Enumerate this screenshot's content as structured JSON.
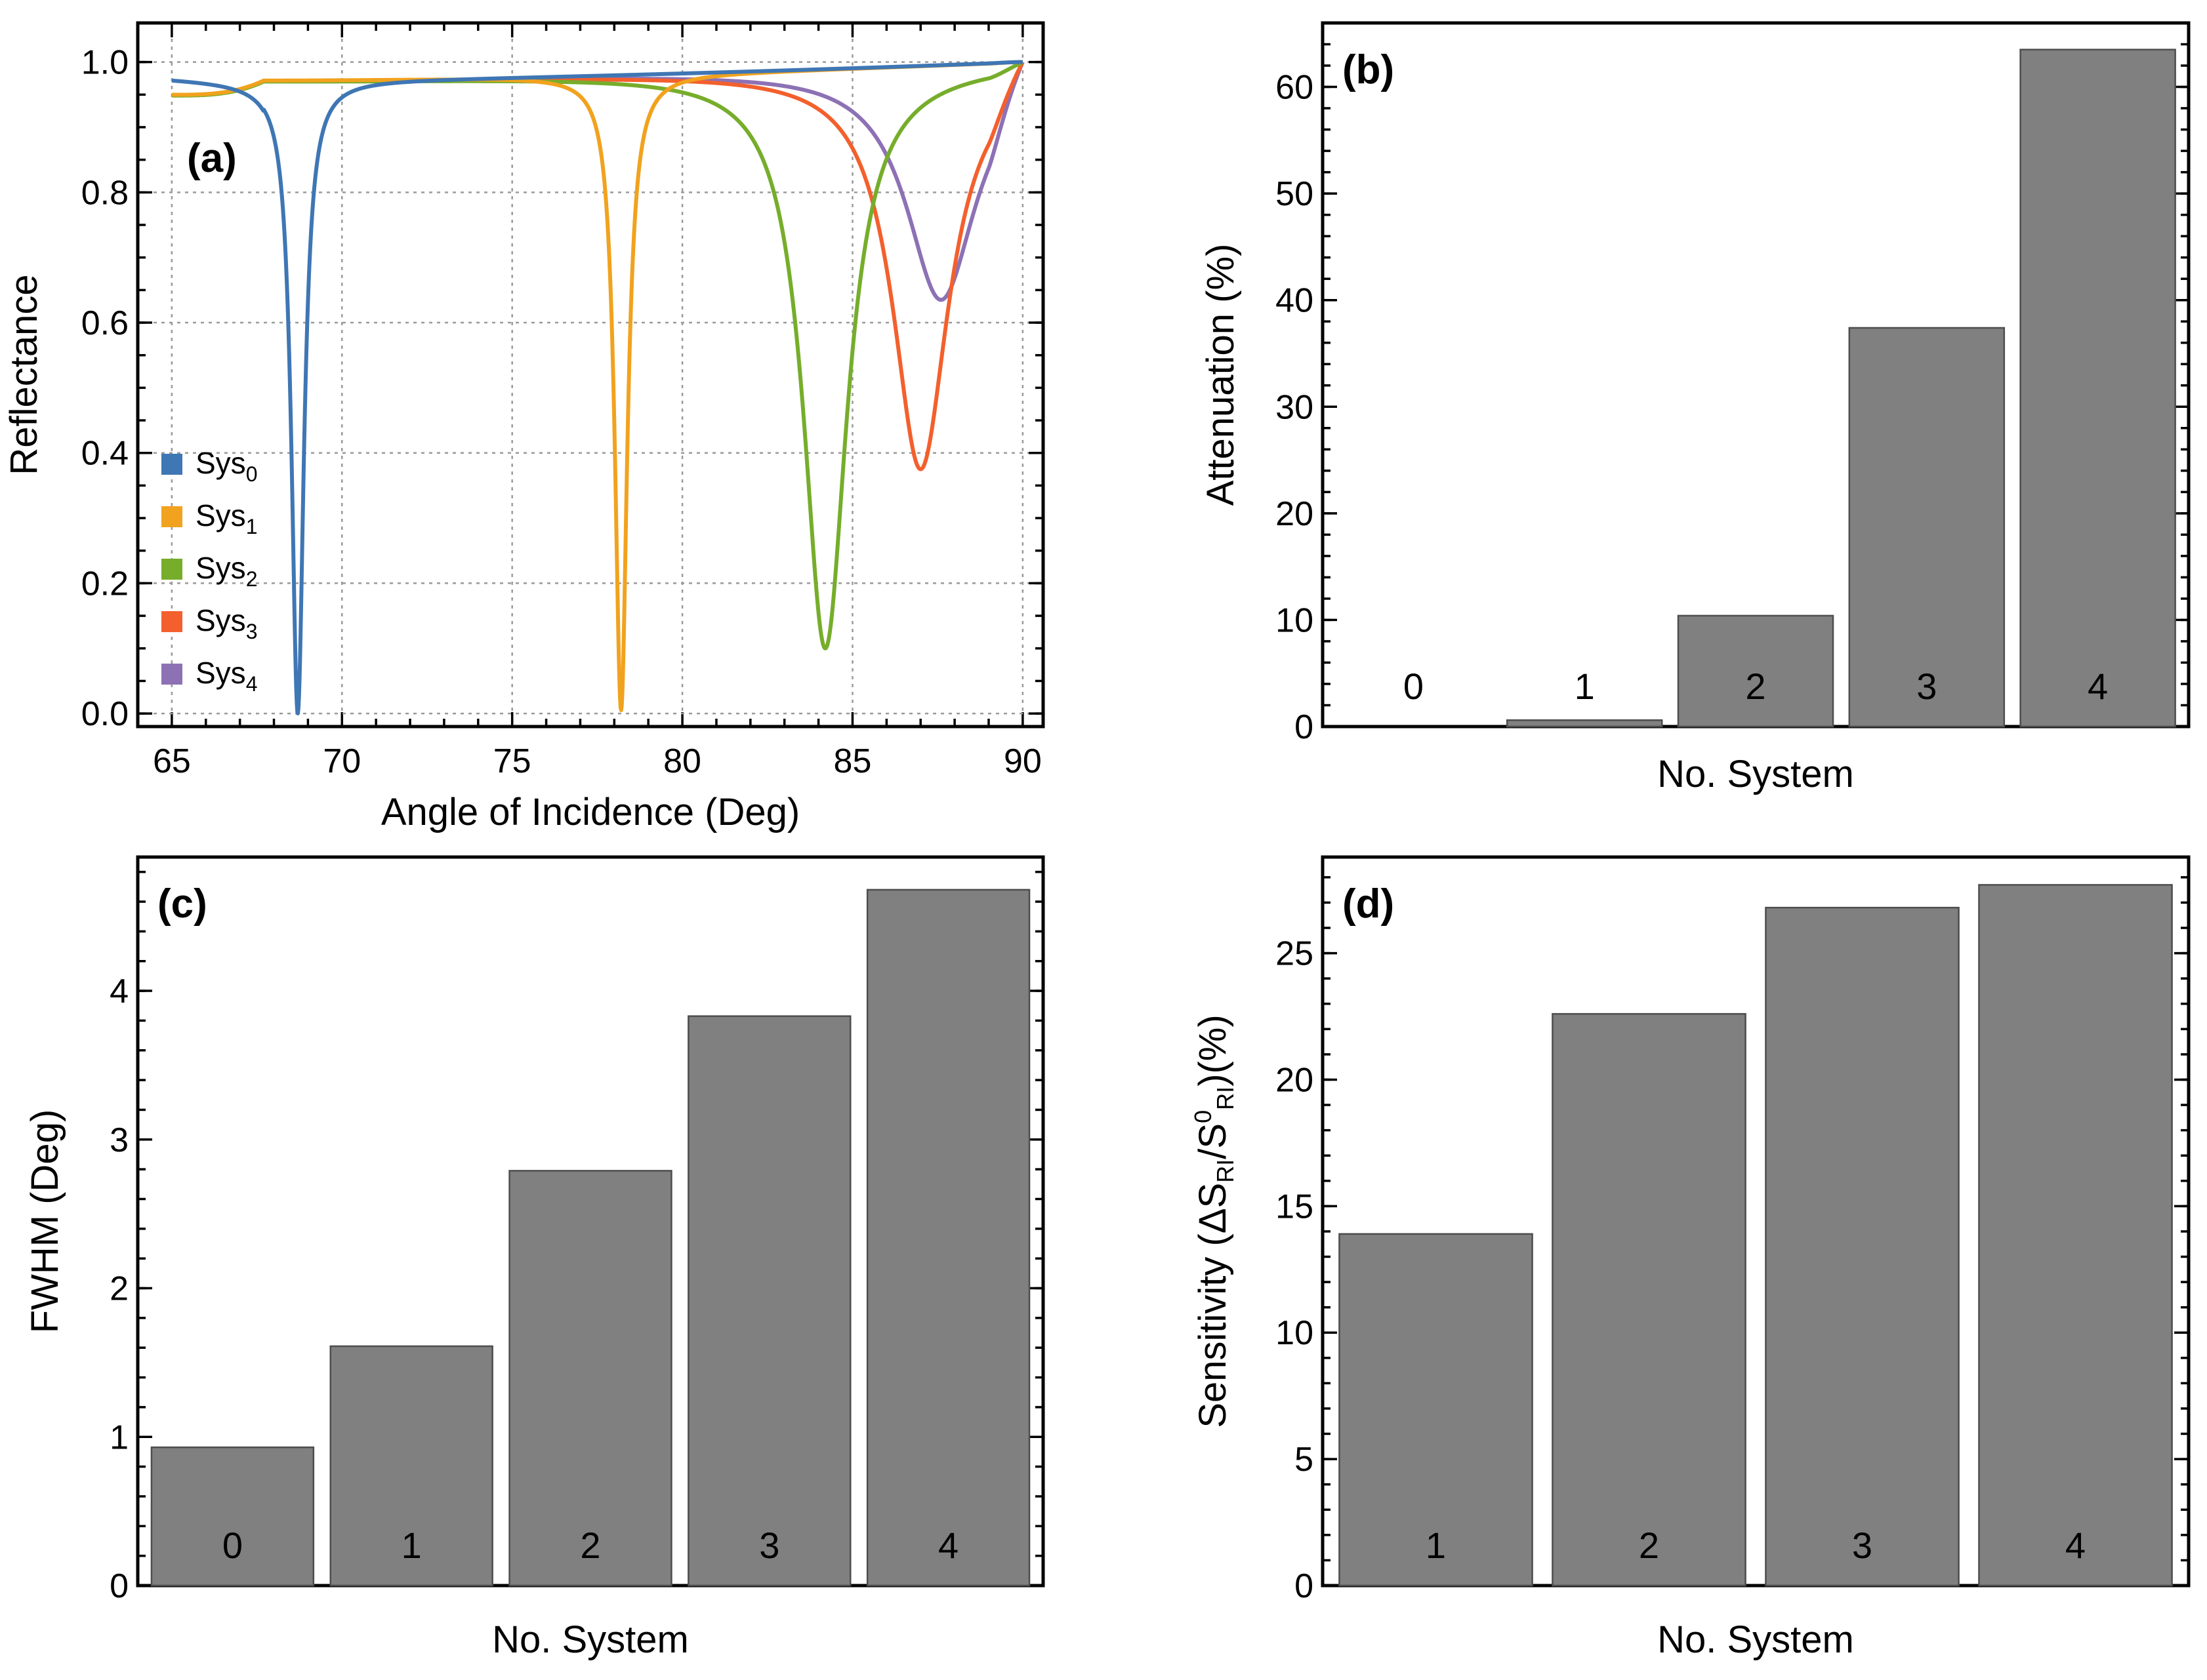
{
  "chart_data": [
    {
      "panel": "(a)",
      "type": "line",
      "xlabel": "Angle of Incidence (Deg)",
      "ylabel": "Reflectance",
      "xlim": [
        64,
        90.6
      ],
      "ylim": [
        -0.02,
        1.06
      ],
      "xticks": [
        65,
        70,
        75,
        80,
        85,
        90
      ],
      "yticks": [
        0.0,
        0.2,
        0.4,
        0.6,
        0.8,
        1.0
      ],
      "grid": true,
      "legend": "bottom-left",
      "series": [
        {
          "name": "Sys",
          "sub": "0",
          "color": "#3f76b4",
          "min_x": 68.7,
          "min_y": 0.0,
          "width": 0.22,
          "lowA": 0.975,
          "rise_start": 67.5
        },
        {
          "name": "Sys",
          "sub": "1",
          "color": "#f1a21e",
          "min_x": 78.2,
          "min_y": 0.005,
          "width": 0.22,
          "lowA": 0.95
        },
        {
          "name": "Sys",
          "sub": "2",
          "color": "#76ad2b",
          "min_x": 84.2,
          "min_y": 0.1,
          "width": 0.78,
          "lowA": 0.95
        },
        {
          "name": "Sys",
          "sub": "3",
          "color": "#f3602d",
          "min_x": 87.0,
          "min_y": 0.375,
          "width": 1.0,
          "lowA": 0.95
        },
        {
          "name": "Sys",
          "sub": "4",
          "color": "#8d71b5",
          "min_x": 87.6,
          "min_y": 0.635,
          "width": 1.25,
          "lowA": 0.95
        }
      ]
    },
    {
      "panel": "(b)",
      "type": "bar",
      "xlabel": "No. System",
      "ylabel": "Attenuation (%)",
      "ylim": [
        0,
        66
      ],
      "yticks": [
        0,
        10,
        20,
        30,
        40,
        50,
        60
      ],
      "categories": [
        "0",
        "1",
        "2",
        "3",
        "4"
      ],
      "values": [
        0,
        0.6,
        10.4,
        37.4,
        63.5
      ]
    },
    {
      "panel": "(c)",
      "type": "bar",
      "xlabel": "No. System",
      "ylabel": "FWHM (Deg)",
      "ylim": [
        0,
        4.9
      ],
      "yticks": [
        0,
        1,
        2,
        3,
        4
      ],
      "categories": [
        "0",
        "1",
        "2",
        "3",
        "4"
      ],
      "values": [
        0.93,
        1.61,
        2.79,
        3.83,
        4.68
      ]
    },
    {
      "panel": "(d)",
      "type": "bar",
      "xlabel": "No. System",
      "ylabel": "Sensitivity (ΔS<sub>RI</sub>/S<sup>0</sup><sub>RI</sub>)(%)",
      "ylim": [
        0,
        28.8
      ],
      "yticks": [
        0,
        5,
        10,
        15,
        20,
        25
      ],
      "categories": [
        "1",
        "2",
        "3",
        "4"
      ],
      "values": [
        13.9,
        22.6,
        26.8,
        27.7
      ]
    }
  ]
}
